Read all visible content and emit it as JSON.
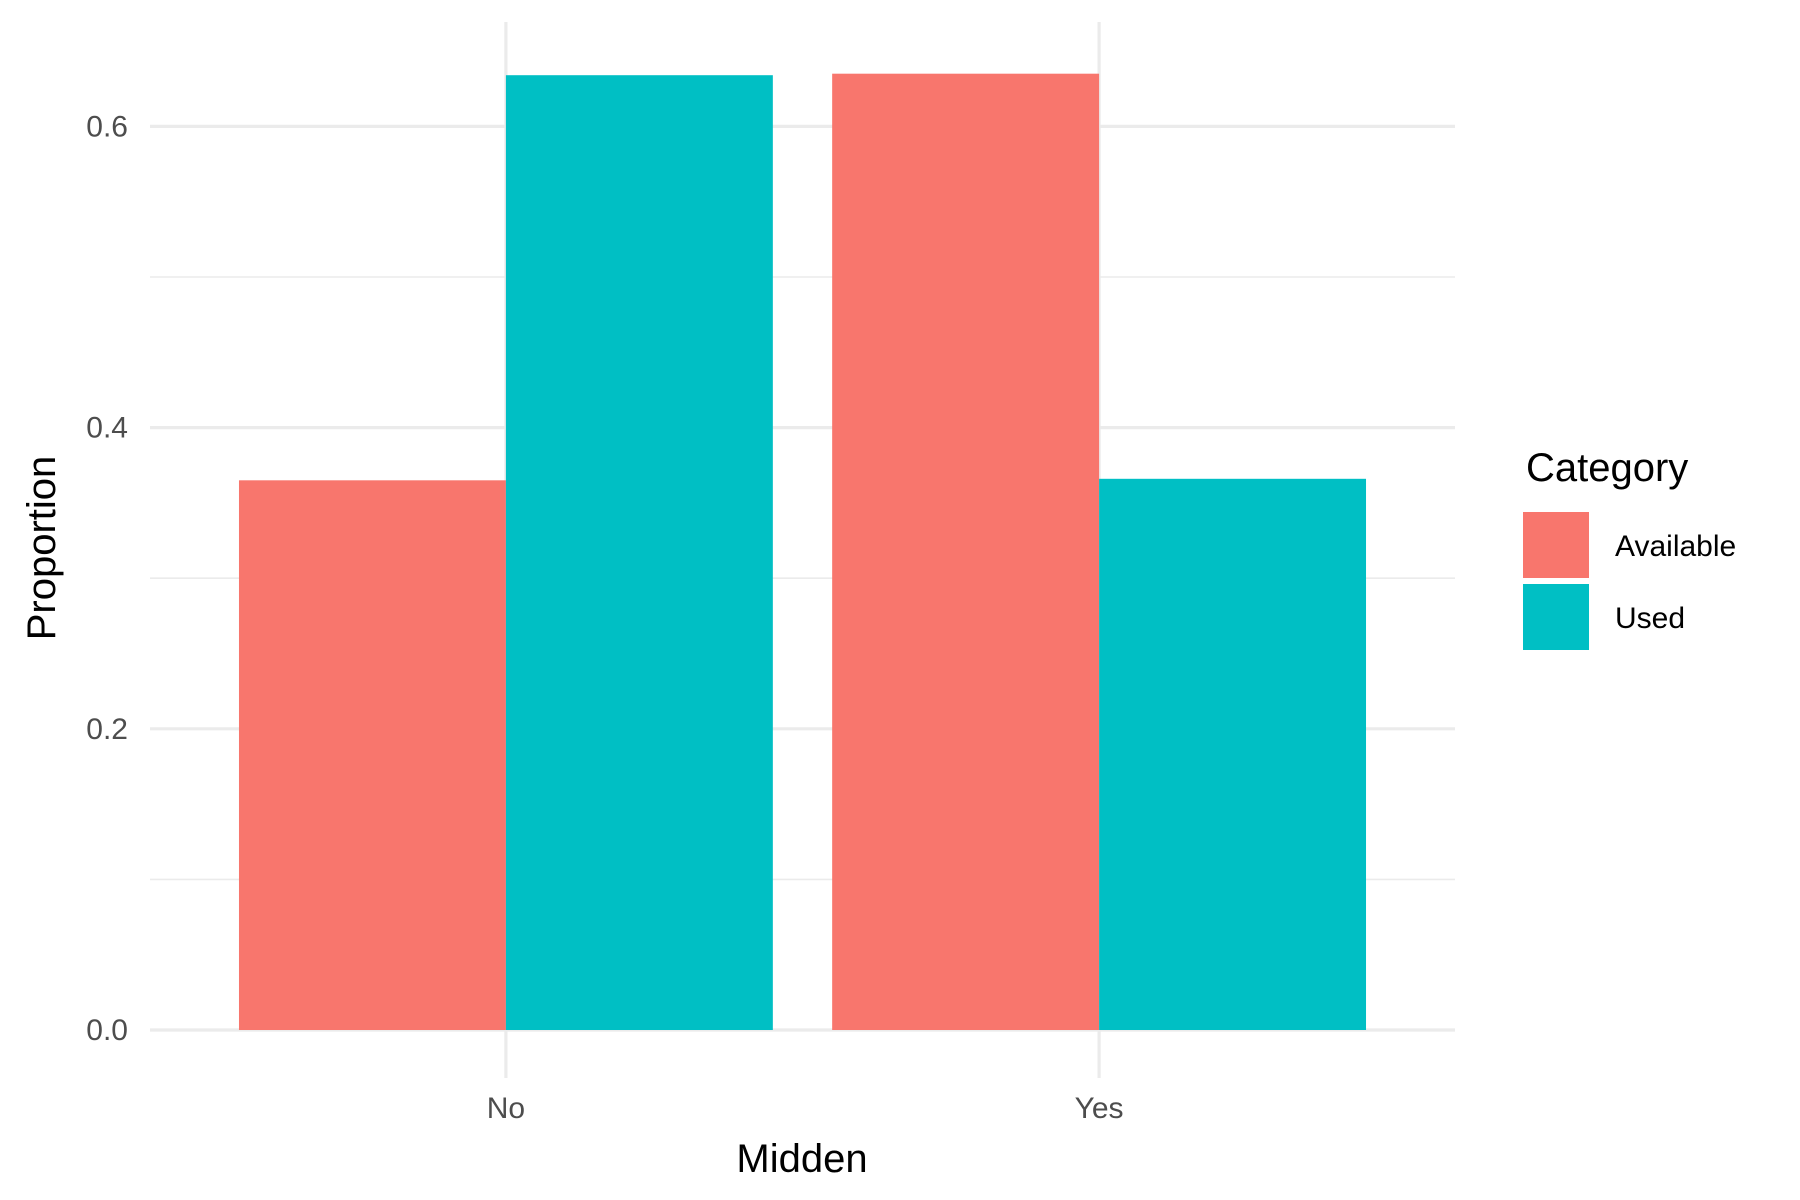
{
  "chart_data": {
    "type": "bar",
    "orientation": "vertical",
    "grouping": "dodge",
    "categories": [
      "No",
      "Yes"
    ],
    "series": [
      {
        "name": "Available",
        "color": "#F8766D",
        "values": [
          0.365,
          0.635
        ]
      },
      {
        "name": "Used",
        "color": "#00BFC4",
        "values": [
          0.634,
          0.366
        ]
      }
    ],
    "title": "",
    "xlabel": "Midden",
    "ylabel": "Proportion",
    "ylim": [
      -0.03,
      0.665
    ],
    "yticks": [
      0.0,
      0.2,
      0.4,
      0.6
    ],
    "ytick_labels": [
      "0.0",
      "0.2",
      "0.4",
      "0.6"
    ],
    "grid": true,
    "legend": {
      "title": "Category",
      "placement": "right"
    },
    "colors": {
      "background": "#ffffff",
      "grid": "#ebebeb"
    }
  }
}
